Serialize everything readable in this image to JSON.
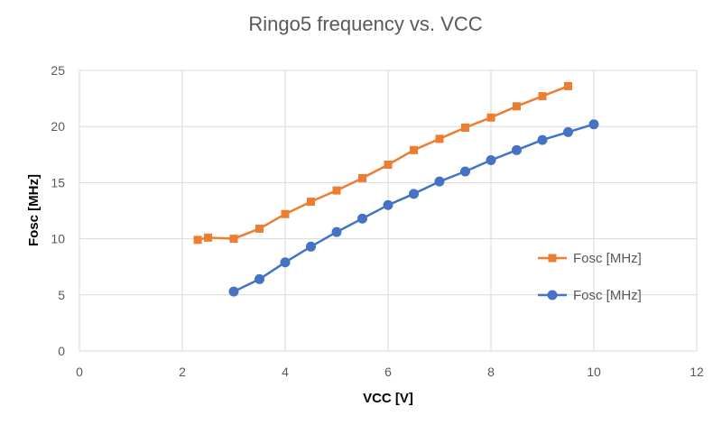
{
  "chart_data": {
    "type": "scatter",
    "title": "Ringo5 frequency vs. VCC",
    "xlabel": "VCC [V]",
    "ylabel": "Fosc [MHz]",
    "xlim": [
      0,
      12
    ],
    "ylim": [
      0,
      25
    ],
    "xticks": [
      "0",
      "2",
      "4",
      "6",
      "8",
      "10",
      "12"
    ],
    "yticks": [
      "0",
      "5",
      "10",
      "15",
      "20",
      "25"
    ],
    "grid": true,
    "legend_position": "right",
    "series": [
      {
        "name": "Fosc [MHz]",
        "marker": "square",
        "color": "#ED7D31",
        "x": [
          2.3,
          2.5,
          3.0,
          3.5,
          4.0,
          4.5,
          5.0,
          5.5,
          6.0,
          6.5,
          7.0,
          7.5,
          8.0,
          8.5,
          9.0,
          9.5
        ],
        "y": [
          9.9,
          10.1,
          10.0,
          10.9,
          12.2,
          13.3,
          14.3,
          15.4,
          16.6,
          17.9,
          18.9,
          19.9,
          20.8,
          21.8,
          22.7,
          23.6
        ]
      },
      {
        "name": "Fosc [MHz]",
        "marker": "circle",
        "color": "#4472C4",
        "x": [
          3.0,
          3.5,
          4.0,
          4.5,
          5.0,
          5.5,
          6.0,
          6.5,
          7.0,
          7.5,
          8.0,
          8.5,
          9.0,
          9.5,
          10.0
        ],
        "y": [
          5.3,
          6.4,
          7.9,
          9.3,
          10.6,
          11.8,
          13.0,
          14.0,
          15.1,
          16.0,
          17.0,
          17.9,
          18.8,
          19.5,
          20.2
        ]
      }
    ]
  }
}
